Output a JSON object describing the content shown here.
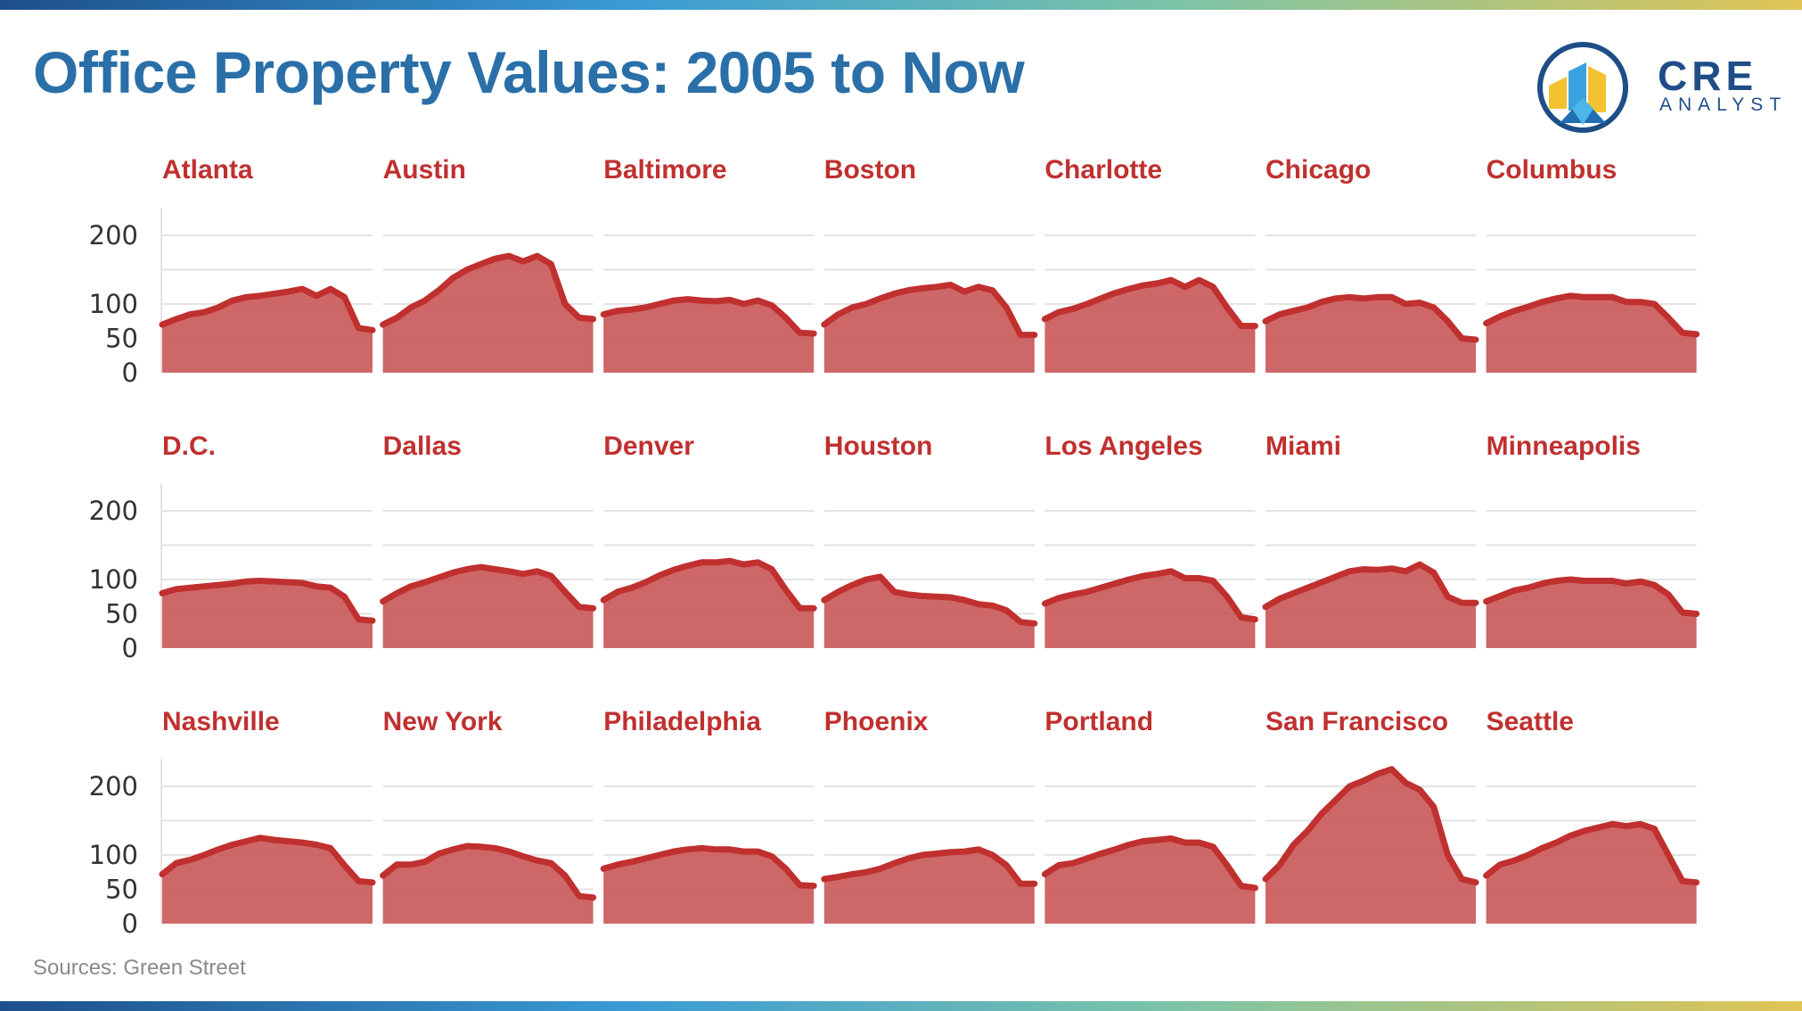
{
  "title": "Office Property Values: 2005 to Now",
  "logo": {
    "primary": "CRE",
    "secondary": "ANALYST"
  },
  "source": "Sources: Green Street",
  "colors": {
    "title": "#2a6fa8",
    "accent": "#c0302f",
    "fill": "#c95656",
    "grid": "#e3e3e3",
    "logo": "#1f4e87"
  },
  "chart_data": {
    "type": "area",
    "layout": "small-multiples",
    "y_ticks": [
      0,
      50,
      100,
      200
    ],
    "ylim": [
      0,
      240
    ],
    "x_start_year": 2005,
    "series": [
      {
        "name": "Atlanta",
        "values": [
          70,
          78,
          85,
          88,
          95,
          105,
          110,
          112,
          115,
          118,
          122,
          112,
          122,
          110,
          65,
          62
        ]
      },
      {
        "name": "Austin",
        "values": [
          70,
          80,
          95,
          105,
          120,
          138,
          150,
          158,
          166,
          170,
          162,
          170,
          158,
          100,
          80,
          78
        ]
      },
      {
        "name": "Baltimore",
        "values": [
          85,
          90,
          92,
          95,
          100,
          105,
          107,
          105,
          104,
          106,
          100,
          105,
          98,
          80,
          58,
          57
        ]
      },
      {
        "name": "Boston",
        "values": [
          70,
          85,
          95,
          100,
          108,
          115,
          120,
          123,
          125,
          128,
          118,
          125,
          120,
          95,
          55,
          55
        ]
      },
      {
        "name": "Charlotte",
        "values": [
          78,
          88,
          93,
          100,
          108,
          116,
          122,
          127,
          130,
          135,
          125,
          135,
          125,
          95,
          68,
          68
        ]
      },
      {
        "name": "Chicago",
        "values": [
          75,
          85,
          90,
          95,
          103,
          108,
          110,
          108,
          110,
          110,
          100,
          102,
          95,
          75,
          50,
          48
        ]
      },
      {
        "name": "Columbus",
        "values": [
          72,
          82,
          90,
          96,
          103,
          108,
          112,
          110,
          110,
          110,
          103,
          103,
          100,
          80,
          58,
          56
        ]
      },
      {
        "name": "D.C.",
        "values": [
          80,
          86,
          88,
          90,
          92,
          94,
          97,
          98,
          97,
          96,
          95,
          90,
          88,
          75,
          42,
          40
        ]
      },
      {
        "name": "Dallas",
        "values": [
          68,
          80,
          90,
          96,
          103,
          110,
          115,
          118,
          115,
          112,
          108,
          112,
          105,
          82,
          60,
          58
        ]
      },
      {
        "name": "Denver",
        "values": [
          70,
          82,
          88,
          96,
          106,
          114,
          120,
          125,
          125,
          127,
          122,
          125,
          115,
          85,
          58,
          58
        ]
      },
      {
        "name": "Houston",
        "values": [
          70,
          82,
          92,
          100,
          104,
          82,
          78,
          76,
          75,
          74,
          70,
          64,
          62,
          55,
          38,
          36
        ]
      },
      {
        "name": "Los Angeles",
        "values": [
          65,
          73,
          78,
          82,
          88,
          94,
          100,
          105,
          108,
          112,
          102,
          102,
          98,
          75,
          45,
          42
        ]
      },
      {
        "name": "Miami",
        "values": [
          60,
          72,
          80,
          88,
          96,
          104,
          112,
          115,
          114,
          116,
          112,
          122,
          110,
          75,
          66,
          66
        ]
      },
      {
        "name": "Minneapolis",
        "values": [
          68,
          76,
          84,
          88,
          94,
          98,
          100,
          98,
          98,
          98,
          94,
          97,
          92,
          78,
          52,
          50
        ]
      },
      {
        "name": "Nashville",
        "values": [
          72,
          88,
          93,
          100,
          108,
          115,
          120,
          125,
          122,
          120,
          118,
          115,
          110,
          85,
          62,
          60
        ]
      },
      {
        "name": "New York",
        "values": [
          70,
          86,
          86,
          90,
          102,
          108,
          113,
          112,
          110,
          105,
          98,
          92,
          88,
          70,
          40,
          38
        ]
      },
      {
        "name": "Philadelphia",
        "values": [
          80,
          86,
          90,
          95,
          100,
          105,
          108,
          110,
          108,
          108,
          105,
          105,
          98,
          80,
          56,
          55
        ]
      },
      {
        "name": "Phoenix",
        "values": [
          65,
          68,
          72,
          75,
          80,
          88,
          95,
          100,
          102,
          104,
          105,
          108,
          100,
          85,
          58,
          58
        ]
      },
      {
        "name": "Portland",
        "values": [
          72,
          85,
          88,
          95,
          102,
          108,
          115,
          120,
          122,
          124,
          118,
          118,
          112,
          85,
          55,
          52
        ]
      },
      {
        "name": "San Francisco",
        "values": [
          65,
          85,
          115,
          135,
          160,
          180,
          200,
          208,
          218,
          225,
          205,
          195,
          170,
          100,
          65,
          60
        ]
      },
      {
        "name": "Seattle",
        "values": [
          70,
          86,
          92,
          100,
          110,
          118,
          128,
          135,
          140,
          145,
          142,
          145,
          138,
          100,
          62,
          60
        ]
      }
    ]
  }
}
